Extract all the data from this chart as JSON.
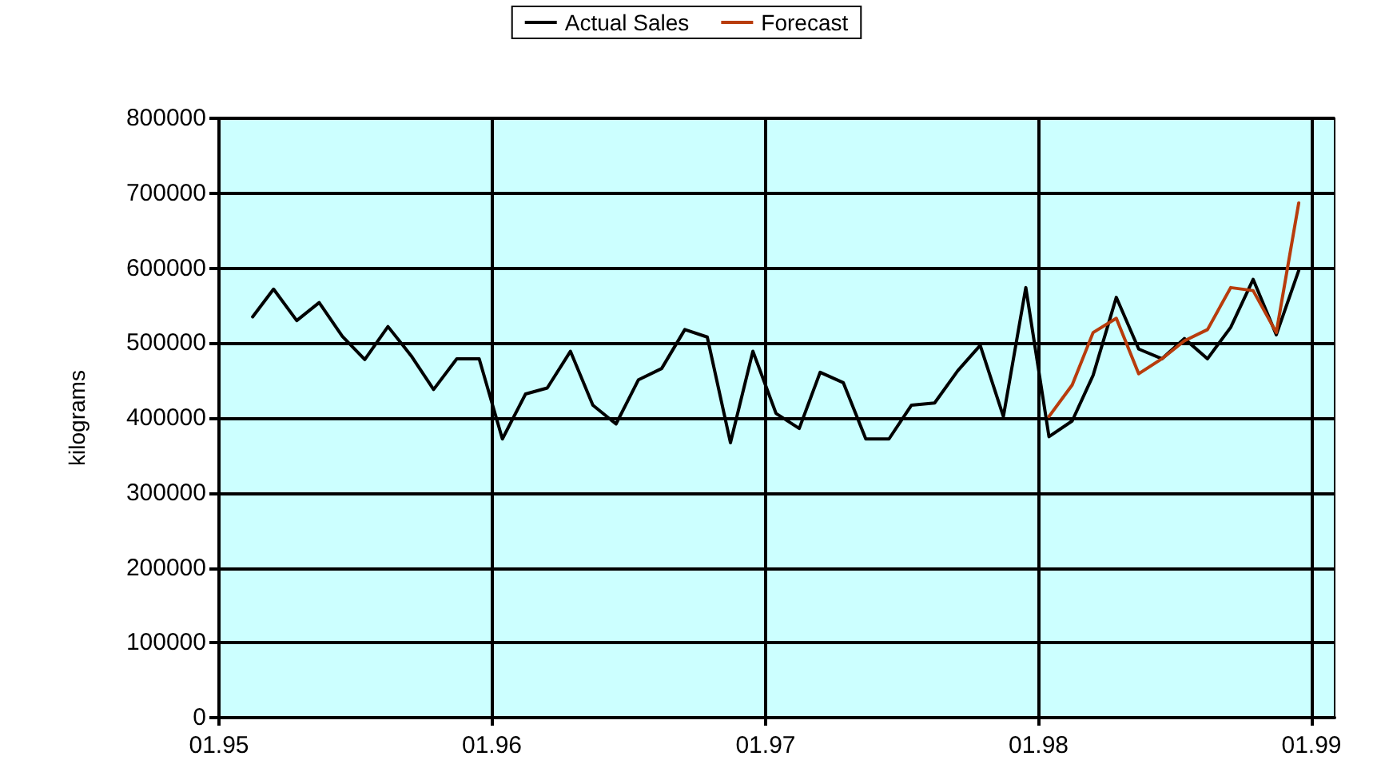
{
  "chart_data": {
    "type": "line",
    "ylabel": "kilograms",
    "xlim": [
      "1995-01",
      "1999-02"
    ],
    "xticks": [
      {
        "value": "1995-01",
        "label": "01.95"
      },
      {
        "value": "1996-01",
        "label": "01.96"
      },
      {
        "value": "1997-01",
        "label": "01.97"
      },
      {
        "value": "1998-01",
        "label": "01.98"
      },
      {
        "value": "1999-01",
        "label": "01.99"
      }
    ],
    "ylim": [
      0,
      800000
    ],
    "yticks": [
      0,
      100000,
      200000,
      300000,
      400000,
      500000,
      600000,
      700000,
      800000
    ],
    "grid": true,
    "legend": "top",
    "marker": "none",
    "line_style": "solid",
    "series": [
      {
        "name": "Actual Sales",
        "color": "#000000",
        "x": [
          "1995-02-15",
          "1995-03-15",
          "1995-04-15",
          "1995-05-15",
          "1995-06-15",
          "1995-07-15",
          "1995-08-15",
          "1995-09-15",
          "1995-10-15",
          "1995-11-15",
          "1995-12-15",
          "1996-01-15",
          "1996-02-15",
          "1996-03-15",
          "1996-04-15",
          "1996-05-15",
          "1996-06-15",
          "1996-07-15",
          "1996-08-15",
          "1996-09-15",
          "1996-10-15",
          "1996-11-15",
          "1996-12-15",
          "1997-01-15",
          "1997-02-15",
          "1997-03-15",
          "1997-04-15",
          "1997-05-15",
          "1997-06-15",
          "1997-07-15",
          "1997-08-15",
          "1997-09-15",
          "1997-10-15",
          "1997-11-15",
          "1997-12-15",
          "1998-01-15",
          "1998-02-15",
          "1998-03-15",
          "1998-04-15",
          "1998-05-15",
          "1998-06-15",
          "1998-07-15",
          "1998-08-15",
          "1998-09-15",
          "1998-10-15",
          "1998-11-15",
          "1998-12-15"
        ],
        "values": [
          535000,
          572000,
          530000,
          554000,
          509000,
          478000,
          522000,
          483000,
          438000,
          479000,
          479000,
          372000,
          432000,
          440000,
          489000,
          417000,
          392000,
          451000,
          466000,
          518000,
          508000,
          367000,
          489000,
          406000,
          386000,
          461000,
          447000,
          372000,
          372000,
          417000,
          420000,
          463000,
          497000,
          402000,
          574000,
          375000,
          396000,
          457000,
          561000,
          492000,
          479000,
          506000,
          479000,
          521000,
          585000,
          511000,
          597000
        ]
      },
      {
        "name": "Forecast",
        "color": "#b83c0c",
        "x": [
          "1998-01-15",
          "1998-02-15",
          "1998-03-15",
          "1998-04-15",
          "1998-05-15",
          "1998-06-15",
          "1998-07-15",
          "1998-08-15",
          "1998-09-15",
          "1998-10-15",
          "1998-11-15",
          "1998-12-15"
        ],
        "values": [
          402000,
          444000,
          514000,
          533000,
          459000,
          479000,
          503000,
          518000,
          574000,
          570000,
          514000,
          687000
        ]
      }
    ]
  }
}
